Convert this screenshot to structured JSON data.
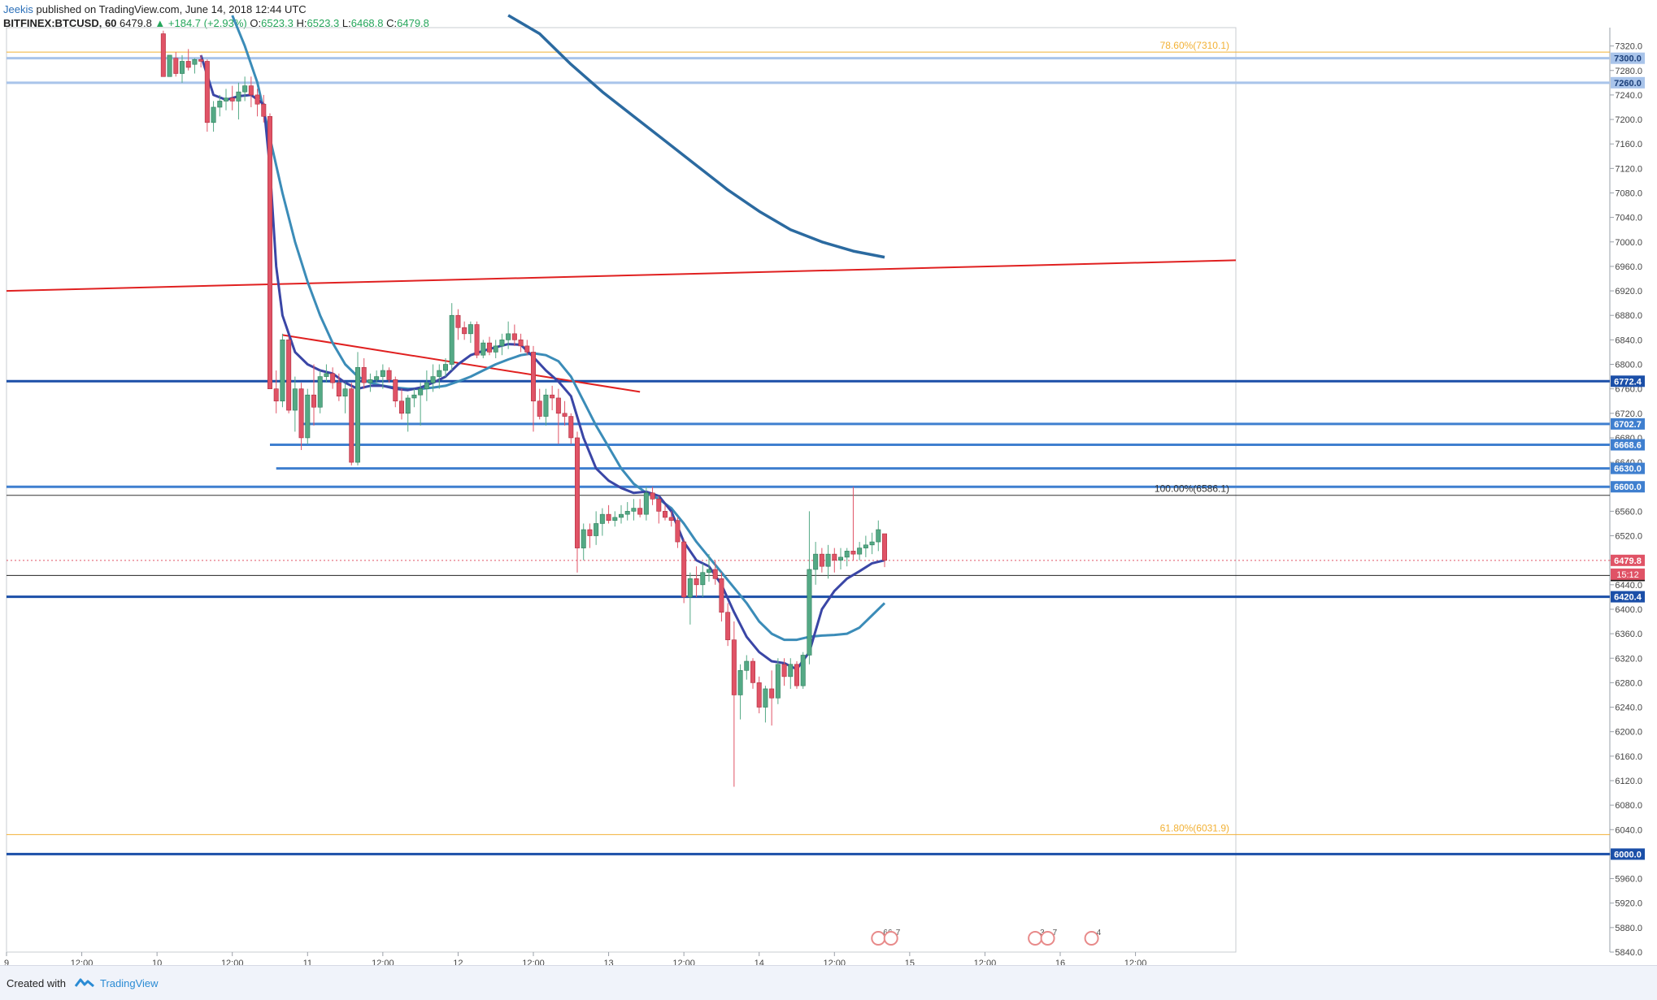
{
  "header": {
    "author": "Jeekis",
    "published_text": "published on TradingView.com, June 14, 2018 12:44 UTC",
    "symbol": "BITFINEX:BTCUSD, 60",
    "last": "6479.8",
    "change": "▲ +184.7 (+2.93%)",
    "open_label": "O:",
    "open": "6523.3",
    "high_label": "H:",
    "high": "6523.3",
    "low_label": "L:",
    "low": "6468.8",
    "close_label": "C:",
    "close": "6479.8"
  },
  "footer": {
    "created_with": "Created with",
    "brand": "TradingView"
  },
  "colors": {
    "bull": "#54a985",
    "bear": "#e05366",
    "level_blue": "#1b4fa8",
    "level_light": "#a9c4ea",
    "fib_orange": "#f2b135",
    "ema_dark": "#3a46a6",
    "ema_teal": "#3b8cb8",
    "ma_slow": "#2b6aa0",
    "trend_red": "#e02020"
  },
  "chart_data": {
    "type": "candlestick",
    "symbol": "BITFINEX:BTCUSD",
    "interval": "60",
    "ylim": [
      5840,
      7350
    ],
    "y_ticks": [
      5840,
      5880,
      5920,
      5960,
      6000,
      6040,
      6080,
      6120,
      6160,
      6200,
      6240,
      6280,
      6320,
      6360,
      6400,
      6440,
      6480,
      6520,
      6560,
      6600,
      6640,
      6680,
      6720,
      6760,
      6800,
      6840,
      6880,
      6920,
      6960,
      7000,
      7040,
      7080,
      7120,
      7160,
      7200,
      7240,
      7280,
      7320
    ],
    "x_range_hours": [
      0,
      196
    ],
    "x_ticks": [
      {
        "label": "9",
        "h": 0
      },
      {
        "label": "12:00",
        "h": 12
      },
      {
        "label": "10",
        "h": 24
      },
      {
        "label": "12:00",
        "h": 36
      },
      {
        "label": "11",
        "h": 48
      },
      {
        "label": "12:00",
        "h": 60
      },
      {
        "label": "12",
        "h": 72
      },
      {
        "label": "12:00",
        "h": 84
      },
      {
        "label": "13",
        "h": 96
      },
      {
        "label": "12:00",
        "h": 108
      },
      {
        "label": "14",
        "h": 120
      },
      {
        "label": "12:00",
        "h": 132
      },
      {
        "label": "15",
        "h": 144
      },
      {
        "label": "12:00",
        "h": 156
      },
      {
        "label": "16",
        "h": 168
      },
      {
        "label": "12:00",
        "h": 180
      }
    ],
    "candles": [
      [
        25,
        7340,
        7345,
        7280,
        7270
      ],
      [
        26,
        7270,
        7300,
        7270,
        7305
      ],
      [
        27,
        7300,
        7310,
        7270,
        7275
      ],
      [
        28,
        7275,
        7305,
        7260,
        7295
      ],
      [
        29,
        7295,
        7315,
        7280,
        7285
      ],
      [
        30,
        7290,
        7300,
        7275,
        7298
      ],
      [
        31,
        7298,
        7305,
        7285,
        7295
      ],
      [
        32,
        7295,
        7298,
        7180,
        7195
      ],
      [
        33,
        7195,
        7230,
        7180,
        7220
      ],
      [
        34,
        7220,
        7240,
        7205,
        7230
      ],
      [
        35,
        7230,
        7250,
        7215,
        7235
      ],
      [
        36,
        7235,
        7255,
        7215,
        7230
      ],
      [
        37,
        7230,
        7260,
        7200,
        7245
      ],
      [
        38,
        7245,
        7270,
        7230,
        7255
      ],
      [
        39,
        7255,
        7270,
        7220,
        7240
      ],
      [
        40,
        7240,
        7250,
        7205,
        7225
      ],
      [
        41,
        7225,
        7240,
        7195,
        7205
      ],
      [
        42,
        7205,
        7210,
        6760,
        6760
      ],
      [
        43,
        6760,
        6790,
        6720,
        6740
      ],
      [
        44,
        6740,
        6850,
        6730,
        6840
      ],
      [
        45,
        6840,
        6845,
        6720,
        6725
      ],
      [
        46,
        6725,
        6780,
        6690,
        6760
      ],
      [
        47,
        6760,
        6770,
        6660,
        6680
      ],
      [
        48,
        6680,
        6760,
        6670,
        6750
      ],
      [
        49,
        6750,
        6800,
        6700,
        6730
      ],
      [
        50,
        6730,
        6790,
        6720,
        6780
      ],
      [
        51,
        6780,
        6800,
        6770,
        6785
      ],
      [
        52,
        6785,
        6795,
        6760,
        6770
      ],
      [
        53,
        6770,
        6785,
        6740,
        6748
      ],
      [
        54,
        6748,
        6770,
        6720,
        6760
      ],
      [
        55,
        6760,
        6770,
        6635,
        6640
      ],
      [
        56,
        6640,
        6820,
        6635,
        6795
      ],
      [
        57,
        6795,
        6810,
        6760,
        6770
      ],
      [
        58,
        6770,
        6785,
        6755,
        6775
      ],
      [
        59,
        6775,
        6790,
        6770,
        6780
      ],
      [
        60,
        6780,
        6800,
        6760,
        6790
      ],
      [
        61,
        6790,
        6795,
        6770,
        6775
      ],
      [
        62,
        6775,
        6780,
        6730,
        6740
      ],
      [
        63,
        6740,
        6760,
        6710,
        6720
      ],
      [
        64,
        6720,
        6750,
        6690,
        6745
      ],
      [
        65,
        6745,
        6760,
        6730,
        6750
      ],
      [
        66,
        6750,
        6770,
        6700,
        6760
      ],
      [
        67,
        6760,
        6790,
        6740,
        6770
      ],
      [
        68,
        6770,
        6800,
        6755,
        6780
      ],
      [
        69,
        6780,
        6800,
        6760,
        6790
      ],
      [
        70,
        6790,
        6810,
        6780,
        6800
      ],
      [
        71,
        6800,
        6900,
        6790,
        6880
      ],
      [
        72,
        6880,
        6890,
        6840,
        6860
      ],
      [
        73,
        6860,
        6870,
        6840,
        6850
      ],
      [
        74,
        6850,
        6870,
        6835,
        6865
      ],
      [
        75,
        6865,
        6870,
        6810,
        6815
      ],
      [
        76,
        6815,
        6840,
        6810,
        6835
      ],
      [
        77,
        6835,
        6845,
        6815,
        6820
      ],
      [
        78,
        6820,
        6840,
        6810,
        6830
      ],
      [
        79,
        6830,
        6850,
        6815,
        6840
      ],
      [
        80,
        6840,
        6870,
        6825,
        6850
      ],
      [
        81,
        6850,
        6865,
        6830,
        6840
      ],
      [
        82,
        6840,
        6850,
        6820,
        6830
      ],
      [
        83,
        6830,
        6840,
        6815,
        6820
      ],
      [
        84,
        6820,
        6830,
        6690,
        6740
      ],
      [
        85,
        6740,
        6760,
        6710,
        6715
      ],
      [
        86,
        6715,
        6760,
        6700,
        6750
      ],
      [
        87,
        6750,
        6765,
        6725,
        6745
      ],
      [
        88,
        6745,
        6760,
        6670,
        6720
      ],
      [
        89,
        6720,
        6740,
        6700,
        6715
      ],
      [
        90,
        6715,
        6720,
        6670,
        6680
      ],
      [
        91,
        6680,
        6690,
        6460,
        6500
      ],
      [
        92,
        6500,
        6540,
        6480,
        6530
      ],
      [
        93,
        6530,
        6540,
        6500,
        6520
      ],
      [
        94,
        6520,
        6560,
        6505,
        6540
      ],
      [
        95,
        6540,
        6565,
        6520,
        6555
      ],
      [
        96,
        6555,
        6570,
        6540,
        6545
      ],
      [
        97,
        6545,
        6560,
        6535,
        6550
      ],
      [
        98,
        6550,
        6570,
        6540,
        6555
      ],
      [
        99,
        6555,
        6575,
        6545,
        6560
      ],
      [
        100,
        6560,
        6580,
        6545,
        6565
      ],
      [
        101,
        6565,
        6580,
        6550,
        6555
      ],
      [
        102,
        6555,
        6600,
        6545,
        6590
      ],
      [
        103,
        6590,
        6600,
        6570,
        6580
      ],
      [
        104,
        6580,
        6585,
        6540,
        6560
      ],
      [
        105,
        6560,
        6570,
        6545,
        6550
      ],
      [
        106,
        6550,
        6560,
        6535,
        6545
      ],
      [
        107,
        6545,
        6550,
        6500,
        6510
      ],
      [
        108,
        6510,
        6515,
        6410,
        6420
      ],
      [
        109,
        6420,
        6460,
        6375,
        6450
      ],
      [
        110,
        6450,
        6470,
        6420,
        6440
      ],
      [
        111,
        6440,
        6475,
        6420,
        6460
      ],
      [
        112,
        6460,
        6490,
        6445,
        6465
      ],
      [
        113,
        6465,
        6480,
        6440,
        6450
      ],
      [
        114,
        6450,
        6460,
        6380,
        6395
      ],
      [
        115,
        6395,
        6410,
        6340,
        6350
      ],
      [
        116,
        6350,
        6380,
        6110,
        6260
      ],
      [
        117,
        6260,
        6310,
        6220,
        6300
      ],
      [
        118,
        6300,
        6325,
        6285,
        6315
      ],
      [
        119,
        6315,
        6320,
        6270,
        6280
      ],
      [
        120,
        6280,
        6290,
        6230,
        6240
      ],
      [
        121,
        6240,
        6275,
        6215,
        6270
      ],
      [
        122,
        6270,
        6300,
        6210,
        6255
      ],
      [
        123,
        6255,
        6320,
        6245,
        6310
      ],
      [
        124,
        6310,
        6320,
        6275,
        6290
      ],
      [
        125,
        6290,
        6320,
        6270,
        6310
      ],
      [
        126,
        6310,
        6315,
        6270,
        6275
      ],
      [
        127,
        6275,
        6330,
        6270,
        6325
      ],
      [
        128,
        6325,
        6560,
        6310,
        6465
      ],
      [
        129,
        6465,
        6510,
        6440,
        6490
      ],
      [
        130,
        6490,
        6500,
        6460,
        6470
      ],
      [
        131,
        6470,
        6505,
        6450,
        6490
      ],
      [
        132,
        6490,
        6500,
        6460,
        6480
      ],
      [
        133,
        6480,
        6500,
        6465,
        6485
      ],
      [
        134,
        6485,
        6500,
        6470,
        6495
      ],
      [
        135,
        6495,
        6600,
        6480,
        6490
      ],
      [
        136,
        6490,
        6510,
        6480,
        6500
      ],
      [
        137,
        6500,
        6520,
        6485,
        6505
      ],
      [
        138,
        6505,
        6525,
        6490,
        6510
      ],
      [
        139,
        6510,
        6545,
        6495,
        6530
      ],
      [
        140,
        6523.3,
        6523.3,
        6468.8,
        6479.8
      ]
    ],
    "ema_fast": [
      [
        31,
        7305
      ],
      [
        33,
        7240
      ],
      [
        35,
        7232
      ],
      [
        37,
        7238
      ],
      [
        39,
        7240
      ],
      [
        41,
        7225
      ],
      [
        42,
        7120
      ],
      [
        43,
        6960
      ],
      [
        44,
        6880
      ],
      [
        46,
        6820
      ],
      [
        48,
        6800
      ],
      [
        50,
        6790
      ],
      [
        52,
        6785
      ],
      [
        54,
        6770
      ],
      [
        56,
        6760
      ],
      [
        58,
        6765
      ],
      [
        60,
        6765
      ],
      [
        62,
        6760
      ],
      [
        64,
        6758
      ],
      [
        66,
        6762
      ],
      [
        68,
        6770
      ],
      [
        70,
        6780
      ],
      [
        72,
        6800
      ],
      [
        74,
        6815
      ],
      [
        76,
        6822
      ],
      [
        78,
        6828
      ],
      [
        80,
        6833
      ],
      [
        82,
        6832
      ],
      [
        84,
        6812
      ],
      [
        86,
        6790
      ],
      [
        88,
        6772
      ],
      [
        90,
        6748
      ],
      [
        92,
        6680
      ],
      [
        94,
        6630
      ],
      [
        96,
        6610
      ],
      [
        98,
        6598
      ],
      [
        100,
        6590
      ],
      [
        102,
        6592
      ],
      [
        104,
        6585
      ],
      [
        106,
        6560
      ],
      [
        108,
        6510
      ],
      [
        110,
        6480
      ],
      [
        112,
        6470
      ],
      [
        114,
        6440
      ],
      [
        116,
        6395
      ],
      [
        118,
        6355
      ],
      [
        120,
        6330
      ],
      [
        122,
        6315
      ],
      [
        124,
        6312
      ],
      [
        126,
        6302
      ],
      [
        128,
        6330
      ],
      [
        130,
        6400
      ],
      [
        132,
        6430
      ],
      [
        134,
        6450
      ],
      [
        136,
        6462
      ],
      [
        138,
        6475
      ],
      [
        140,
        6480
      ]
    ],
    "ema_slow": [
      [
        36,
        7370
      ],
      [
        38,
        7320
      ],
      [
        40,
        7260
      ],
      [
        42,
        7170
      ],
      [
        44,
        7080
      ],
      [
        46,
        7000
      ],
      [
        48,
        6935
      ],
      [
        50,
        6880
      ],
      [
        52,
        6835
      ],
      [
        54,
        6800
      ],
      [
        56,
        6780
      ],
      [
        58,
        6770
      ],
      [
        60,
        6765
      ],
      [
        62,
        6762
      ],
      [
        64,
        6760
      ],
      [
        66,
        6760
      ],
      [
        68,
        6762
      ],
      [
        70,
        6765
      ],
      [
        72,
        6772
      ],
      [
        74,
        6780
      ],
      [
        76,
        6790
      ],
      [
        78,
        6800
      ],
      [
        80,
        6808
      ],
      [
        82,
        6815
      ],
      [
        84,
        6818
      ],
      [
        86,
        6815
      ],
      [
        88,
        6805
      ],
      [
        90,
        6780
      ],
      [
        92,
        6740
      ],
      [
        94,
        6700
      ],
      [
        96,
        6665
      ],
      [
        98,
        6630
      ],
      [
        100,
        6605
      ],
      [
        102,
        6590
      ],
      [
        104,
        6580
      ],
      [
        106,
        6565
      ],
      [
        108,
        6540
      ],
      [
        110,
        6510
      ],
      [
        112,
        6485
      ],
      [
        114,
        6460
      ],
      [
        116,
        6435
      ],
      [
        118,
        6410
      ],
      [
        120,
        6380
      ],
      [
        122,
        6360
      ],
      [
        124,
        6350
      ],
      [
        126,
        6350
      ],
      [
        128,
        6355
      ],
      [
        130,
        6357
      ],
      [
        132,
        6358
      ],
      [
        134,
        6360
      ],
      [
        136,
        6370
      ],
      [
        138,
        6390
      ],
      [
        140,
        6410
      ]
    ],
    "ma_long": [
      [
        80,
        7370
      ],
      [
        85,
        7340
      ],
      [
        90,
        7290
      ],
      [
        95,
        7245
      ],
      [
        100,
        7205
      ],
      [
        105,
        7165
      ],
      [
        110,
        7125
      ],
      [
        115,
        7085
      ],
      [
        120,
        7050
      ],
      [
        125,
        7020
      ],
      [
        130,
        7000
      ],
      [
        135,
        6985
      ],
      [
        140,
        6975
      ]
    ],
    "horizontal_levels": [
      {
        "value": 7300.0,
        "label": "7300.0",
        "style": "light"
      },
      {
        "value": 7260.0,
        "label": "7260.0",
        "style": "light"
      },
      {
        "value": 6772.4,
        "label": "6772.4",
        "style": "dark"
      },
      {
        "value": 6702.7,
        "label": "6702.7",
        "style": "mid",
        "from_h": 47
      },
      {
        "value": 6668.6,
        "label": "6668.6",
        "style": "mid",
        "from_h": 42
      },
      {
        "value": 6630.0,
        "label": "6630.0",
        "style": "mid",
        "from_h": 43
      },
      {
        "value": 6600.0,
        "label": "6600.0",
        "style": "mid"
      },
      {
        "value": 6420.4,
        "label": "6420.4",
        "style": "dark"
      },
      {
        "value": 6000.0,
        "label": "6000.0",
        "style": "dark"
      }
    ],
    "fib_levels": [
      {
        "value": 7310.1,
        "label": "78.60%(7310.1)",
        "color": "#f2b135"
      },
      {
        "value": 6586.1,
        "label": "100.00%(6586.1)",
        "color": "#333333"
      },
      {
        "value": 6031.9,
        "label": "61.80%(6031.9)",
        "color": "#f2b135"
      }
    ],
    "black_line": {
      "value": 6455.1,
      "label": "6455.1"
    },
    "last_price": {
      "value": 6479.8,
      "label": "6479.8",
      "countdown": "15:12"
    },
    "trend_lines": [
      {
        "from": [
          0,
          6920
        ],
        "to": [
          196,
          6970
        ]
      },
      {
        "from": [
          44,
          6848
        ],
        "to": [
          101,
          6755
        ]
      }
    ],
    "event_markers": [
      {
        "h": 139,
        "text": "66"
      },
      {
        "h": 141,
        "text": "7"
      },
      {
        "h": 164,
        "text": "3"
      },
      {
        "h": 166,
        "text": "7"
      },
      {
        "h": 173,
        "text": "4"
      }
    ]
  }
}
